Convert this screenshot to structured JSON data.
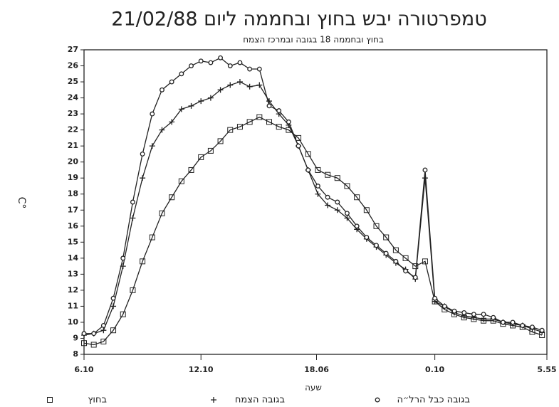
{
  "chart_data": {
    "type": "line",
    "title": "טמפרטורה יבש בחוץ ובחממה ליום 21/02/88",
    "subtitle": "בחוץ ובחממה 18 בגובה ובמרכז הצמח",
    "y_label": "C°",
    "x_label": "שעה",
    "x": [
      0,
      0.5,
      1,
      1.5,
      2,
      2.5,
      3,
      3.5,
      4,
      4.5,
      5,
      5.5,
      6,
      6.5,
      7,
      7.5,
      8,
      8.5,
      9,
      9.5,
      10,
      10.5,
      11,
      11.5,
      12,
      12.5,
      13,
      13.5,
      14,
      14.5,
      15,
      15.5,
      16,
      16.5,
      17,
      17.5,
      18,
      18.5,
      19,
      19.5,
      20,
      20.5,
      21,
      21.5,
      22,
      22.5,
      23,
      23.5
    ],
    "xlim": [
      0,
      23.75
    ],
    "xticks": [
      {
        "value": 0,
        "label": "6.10"
      },
      {
        "value": 6,
        "label": "12.10"
      },
      {
        "value": 11.93,
        "label": "18.06"
      },
      {
        "value": 18,
        "label": "0.10"
      },
      {
        "value": 23.75,
        "label": "5.55"
      }
    ],
    "ylim": [
      8,
      27
    ],
    "yticks": [
      8,
      9,
      10,
      11,
      12,
      13,
      14,
      15,
      16,
      17,
      18,
      19,
      20,
      21,
      22,
      23,
      24,
      25,
      26,
      27
    ],
    "series": [
      {
        "name": "בחוץ",
        "color": "#222222",
        "marker": "square",
        "values": [
          8.7,
          8.6,
          8.8,
          9.5,
          10.5,
          12,
          13.8,
          15.3,
          16.8,
          17.8,
          18.8,
          19.5,
          20.3,
          20.7,
          21.3,
          22,
          22.2,
          22.5,
          22.8,
          22.5,
          22.2,
          22,
          21.5,
          20.5,
          19.5,
          19.2,
          19,
          18.5,
          17.8,
          17,
          16,
          15.3,
          14.5,
          14,
          13.5,
          13.8,
          11.3,
          10.8,
          10.5,
          10.3,
          10.2,
          10.1,
          10.1,
          9.9,
          9.8,
          9.7,
          9.4,
          9.2
        ]
      },
      {
        "name": "בגובה הצמח",
        "color": "#222222",
        "marker": "plus",
        "values": [
          9.2,
          9.3,
          9.5,
          11,
          13.5,
          16.5,
          19,
          21,
          22,
          22.5,
          23.3,
          23.5,
          23.8,
          24,
          24.5,
          24.8,
          25,
          24.7,
          24.8,
          23.8,
          23,
          22.3,
          21,
          19.5,
          18,
          17.3,
          17,
          16.5,
          15.8,
          15.2,
          14.7,
          14.2,
          13.7,
          13.3,
          12.7,
          19,
          11.3,
          11,
          10.6,
          10.4,
          10.3,
          10.2,
          10.2,
          10,
          9.9,
          9.8,
          9.6,
          9.4
        ]
      },
      {
        "name": "בגובה כבל הרל״ה",
        "color": "#222222",
        "marker": "circle",
        "values": [
          9.3,
          9.3,
          9.8,
          11.5,
          14,
          17.5,
          20.5,
          23,
          24.5,
          25,
          25.5,
          26,
          26.3,
          26.2,
          26.5,
          26,
          26.2,
          25.8,
          25.8,
          23.5,
          23.2,
          22.5,
          21,
          19.5,
          18.5,
          17.8,
          17.5,
          16.8,
          16,
          15.3,
          14.8,
          14.3,
          13.8,
          13.2,
          12.8,
          19.5,
          11.5,
          11,
          10.7,
          10.6,
          10.5,
          10.5,
          10.3,
          10,
          10,
          9.8,
          9.7,
          9.5
        ]
      }
    ]
  }
}
